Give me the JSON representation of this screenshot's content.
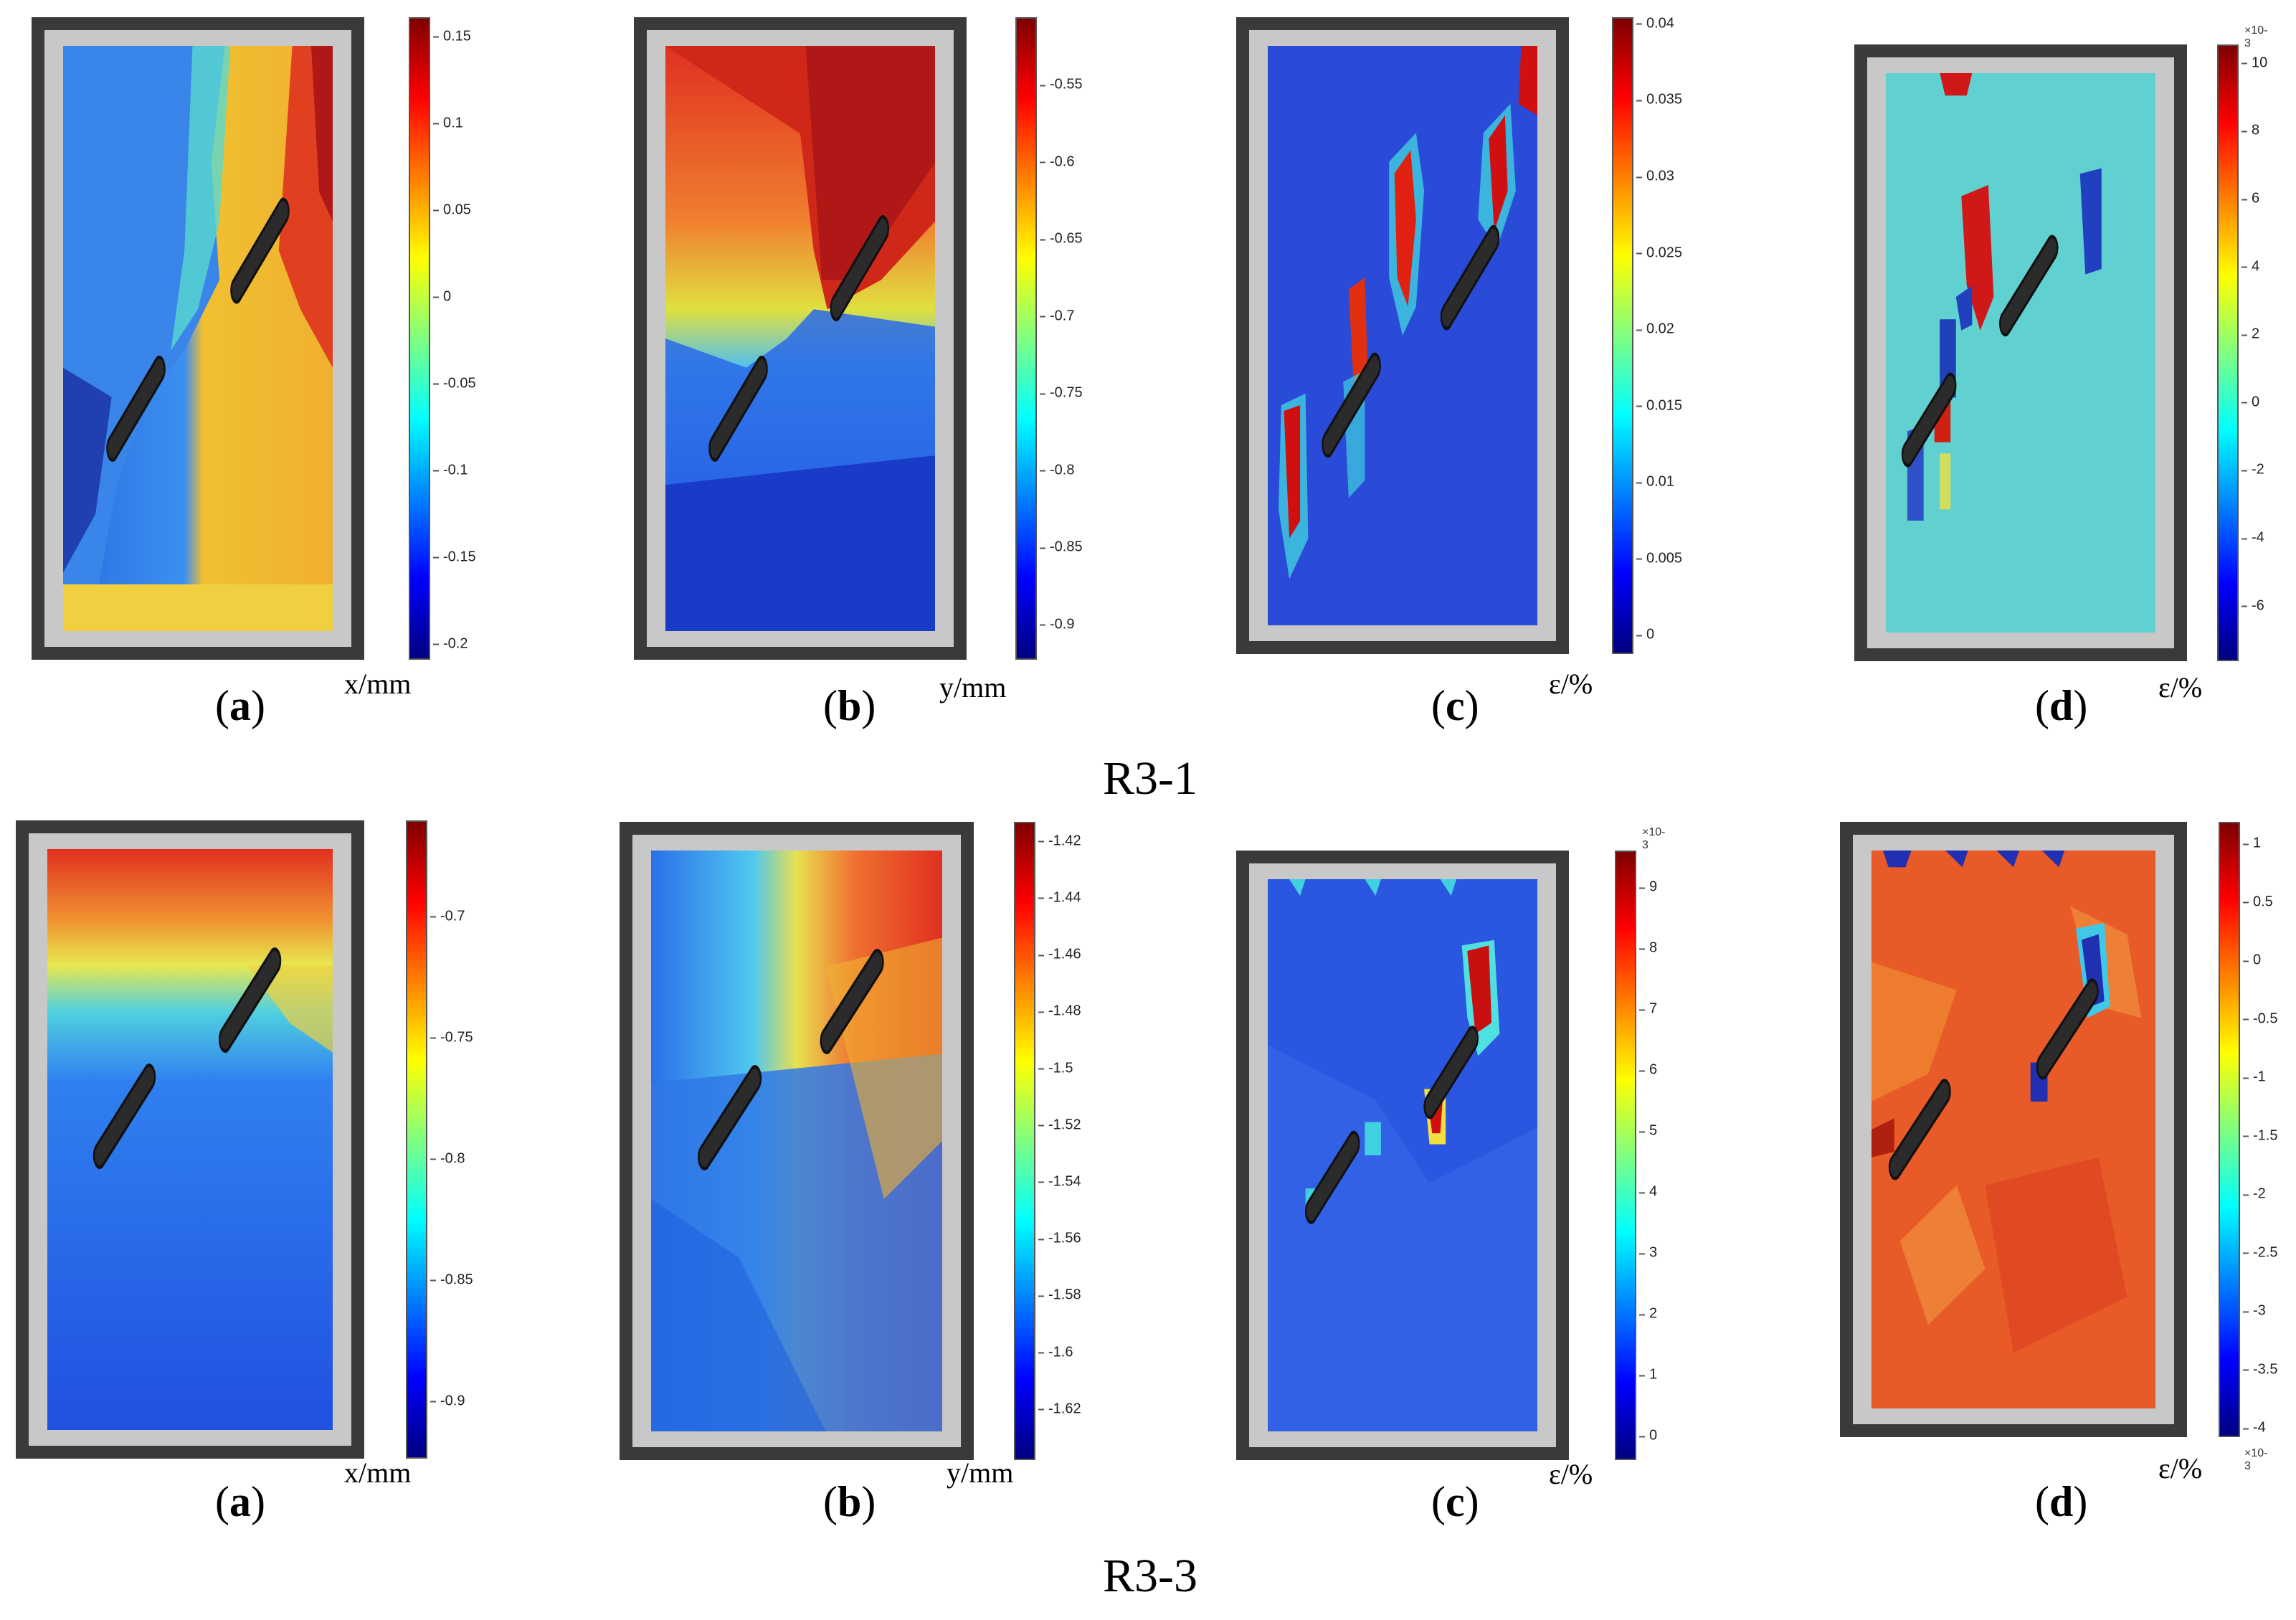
{
  "rows": [
    {
      "title": "R3-1",
      "panels": [
        {
          "label": "a",
          "unit": "x/mm",
          "ticks": [
            "0.15",
            "0.1",
            "0.05",
            "0",
            "-0.05",
            "-0.1",
            "-0.15",
            "-0.2"
          ]
        },
        {
          "label": "b",
          "unit": "y/mm",
          "ticks": [
            "-0.55",
            "-0.6",
            "-0.65",
            "-0.7",
            "-0.75",
            "-0.8",
            "-0.85",
            "-0.9"
          ]
        },
        {
          "label": "c",
          "unit": "ε/%",
          "ticks": [
            "0.04",
            "0.035",
            "0.03",
            "0.025",
            "0.02",
            "0.015",
            "0.01",
            "0.005",
            "0"
          ]
        },
        {
          "label": "d",
          "unit": "ε/%",
          "multiplier": "×10-3",
          "ticks": [
            "10",
            "8",
            "6",
            "4",
            "2",
            "0",
            "-2",
            "-4",
            "-6"
          ]
        }
      ]
    },
    {
      "title": "R3-3",
      "panels": [
        {
          "label": "a",
          "unit": "x/mm",
          "ticks": [
            "-0.7",
            "-0.75",
            "-0.8",
            "-0.85",
            "-0.9"
          ]
        },
        {
          "label": "b",
          "unit": "y/mm",
          "ticks": [
            "-1.42",
            "-1.44",
            "-1.46",
            "-1.48",
            "-1.5",
            "-1.52",
            "-1.54",
            "-1.56",
            "-1.58",
            "-1.6",
            "-1.62"
          ]
        },
        {
          "label": "c",
          "unit": "ε/%",
          "multiplier": "×10-3",
          "ticks": [
            "9",
            "8",
            "7",
            "6",
            "5",
            "4",
            "3",
            "2",
            "1",
            "0"
          ]
        },
        {
          "label": "d",
          "unit": "ε/%",
          "multiplier": "×10-3",
          "ticks": [
            "1",
            "0.5",
            "0",
            "-0.5",
            "-1",
            "-1.5",
            "-2",
            "-2.5",
            "-3",
            "-3.5",
            "-4"
          ]
        }
      ]
    }
  ],
  "colormap": "jet"
}
